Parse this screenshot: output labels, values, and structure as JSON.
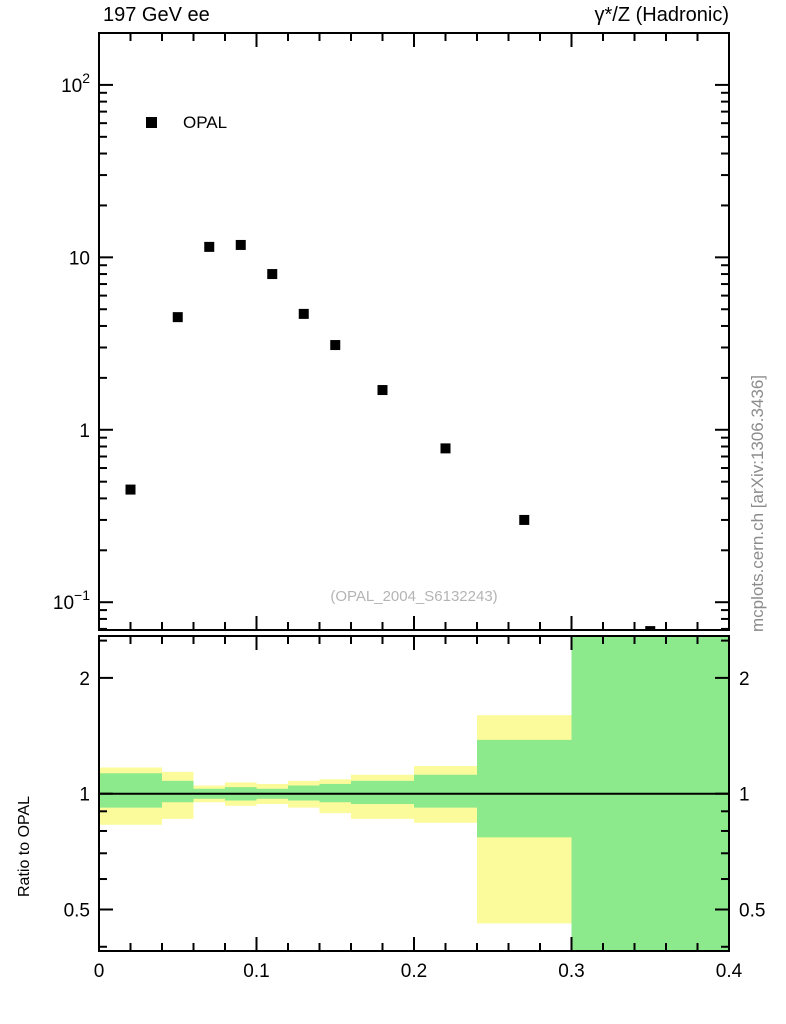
{
  "header": {
    "title_left": "197 GeV ee",
    "title_right": "γ*/Z (Hadronic)"
  },
  "legend": {
    "label": "OPAL",
    "marker": "filled-square"
  },
  "main_panel_annotation": "(OPAL_2004_S6132243)",
  "side_labels": {
    "right_watermark": "mcplots.cern.ch [arXiv:1306.3436]",
    "ratio_ylabel": "Ratio to OPAL"
  },
  "colors": {
    "marker": "#000000",
    "band_outer": "#fbfb9c",
    "band_inner": "#8ce98c",
    "frame": "#000000",
    "watermark_gray": "#b4b4b4",
    "side_gray": "#8c8c8c"
  },
  "chart_data": [
    {
      "type": "scatter",
      "panel": "main",
      "yscale": "log",
      "xlim": [
        0,
        0.4
      ],
      "ylim": [
        0.069,
        200
      ],
      "xticks_major": [
        0,
        0.1,
        0.2,
        0.3,
        0.4
      ],
      "xtick_minor_step": 0.02,
      "yticks_major": [
        0.1,
        1,
        10,
        100
      ],
      "ytick_labels": [
        {
          "base": "10",
          "exp": "−1"
        },
        {
          "base": "1"
        },
        {
          "base": "10"
        },
        {
          "base": "10",
          "exp": "2"
        }
      ],
      "series": [
        {
          "name": "OPAL",
          "marker": "filled-square",
          "color": "#000000",
          "x": [
            0.02,
            0.05,
            0.07,
            0.09,
            0.11,
            0.13,
            0.15,
            0.18,
            0.22,
            0.27,
            0.35
          ],
          "y": [
            0.45,
            4.5,
            11.5,
            11.8,
            8.0,
            4.7,
            3.1,
            1.7,
            0.78,
            0.3,
            0.068
          ]
        }
      ],
      "annotation": "(OPAL_2004_S6132243)",
      "legend_position": "upper-left-inside"
    },
    {
      "type": "ratio-bands",
      "panel": "ratio",
      "ylabel": "Ratio to OPAL",
      "yscale": "log",
      "xlim": [
        0,
        0.4
      ],
      "ylim": [
        0.39,
        2.57
      ],
      "xticks_major": [
        0,
        0.1,
        0.2,
        0.3,
        0.4
      ],
      "xtick_labels": [
        "0",
        "0.1",
        "0.2",
        "0.3",
        "0.4"
      ],
      "xtick_minor_step": 0.02,
      "yticks_major": [
        0.5,
        1,
        2
      ],
      "ytick_labels": [
        {
          "base": "0.5"
        },
        {
          "base": "1"
        },
        {
          "base": "2"
        }
      ],
      "ytick_minors": [
        0.4,
        0.6,
        0.7,
        0.8,
        0.9,
        2.5
      ],
      "reference_line": 1,
      "bands": [
        {
          "x": [
            0.0,
            0.04
          ],
          "outer": [
            0.83,
            1.17
          ],
          "inner": [
            0.92,
            1.13
          ]
        },
        {
          "x": [
            0.04,
            0.06
          ],
          "outer": [
            0.86,
            1.14
          ],
          "inner": [
            0.95,
            1.08
          ]
        },
        {
          "x": [
            0.06,
            0.08
          ],
          "outer": [
            0.95,
            1.05
          ],
          "inner": [
            0.97,
            1.03
          ]
        },
        {
          "x": [
            0.08,
            0.1
          ],
          "outer": [
            0.93,
            1.07
          ],
          "inner": [
            0.96,
            1.04
          ]
        },
        {
          "x": [
            0.1,
            0.12
          ],
          "outer": [
            0.94,
            1.06
          ],
          "inner": [
            0.97,
            1.03
          ]
        },
        {
          "x": [
            0.12,
            0.14
          ],
          "outer": [
            0.92,
            1.08
          ],
          "inner": [
            0.96,
            1.05
          ]
        },
        {
          "x": [
            0.14,
            0.16
          ],
          "outer": [
            0.89,
            1.09
          ],
          "inner": [
            0.95,
            1.06
          ]
        },
        {
          "x": [
            0.16,
            0.2
          ],
          "outer": [
            0.86,
            1.12
          ],
          "inner": [
            0.94,
            1.08
          ]
        },
        {
          "x": [
            0.2,
            0.24
          ],
          "outer": [
            0.84,
            1.18
          ],
          "inner": [
            0.92,
            1.12
          ]
        },
        {
          "x": [
            0.24,
            0.3
          ],
          "outer": [
            0.46,
            1.6
          ],
          "inner": [
            0.77,
            1.38
          ]
        },
        {
          "x": [
            0.3,
            0.4
          ],
          "outer": [
            0.39,
            2.57
          ],
          "inner": [
            0.39,
            2.57
          ]
        }
      ]
    }
  ]
}
